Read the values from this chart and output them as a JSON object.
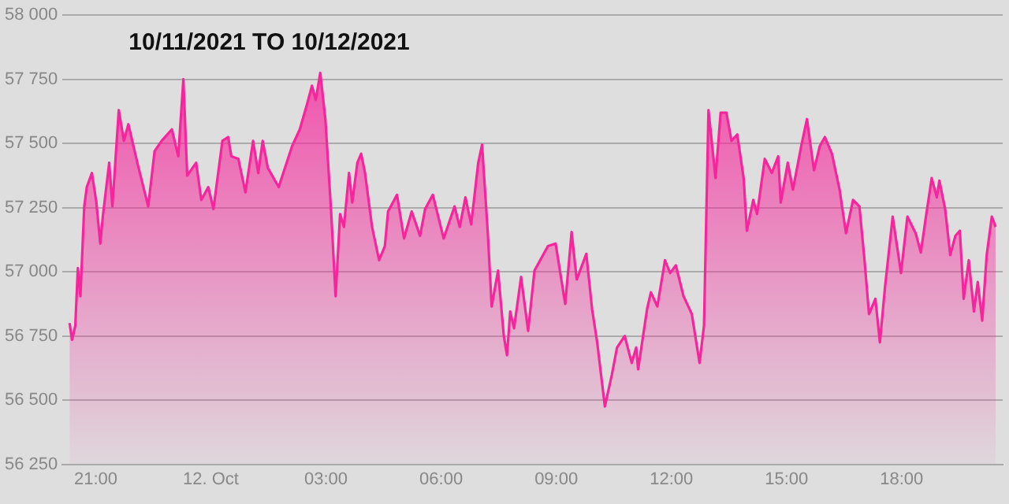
{
  "chart_data": {
    "type": "area",
    "title": "10/11/2021 TO 10/12/2021",
    "x": [
      "2021-10-11T20:19",
      "2021-10-11T20:23",
      "2021-10-11T20:28",
      "2021-10-11T20:32",
      "2021-10-11T20:36",
      "2021-10-11T20:42",
      "2021-10-11T20:46",
      "2021-10-11T20:54",
      "2021-10-11T21:01",
      "2021-10-11T21:07",
      "2021-10-11T21:11",
      "2021-10-11T21:21",
      "2021-10-11T21:26",
      "2021-10-11T21:36",
      "2021-10-11T21:44",
      "2021-10-11T21:51",
      "2021-10-11T22:05",
      "2021-10-11T22:22",
      "2021-10-11T22:32",
      "2021-10-11T22:43",
      "2021-10-11T22:59",
      "2021-10-11T23:09",
      "2021-10-11T23:17",
      "2021-10-11T23:23",
      "2021-10-11T23:37",
      "2021-10-11T23:45",
      "2021-10-11T23:56",
      "2021-10-12T00:04",
      "2021-10-12T00:18",
      "2021-10-12T00:27",
      "2021-10-12T00:32",
      "2021-10-12T00:43",
      "2021-10-12T00:54",
      "2021-10-12T01:06",
      "2021-10-12T01:14",
      "2021-10-12T01:21",
      "2021-10-12T01:29",
      "2021-10-12T01:46",
      "2021-10-12T02:07",
      "2021-10-12T02:19",
      "2021-10-12T02:30",
      "2021-10-12T02:38",
      "2021-10-12T02:44",
      "2021-10-12T02:51",
      "2021-10-12T02:59",
      "2021-10-12T03:08",
      "2021-10-12T03:15",
      "2021-10-12T03:22",
      "2021-10-12T03:28",
      "2021-10-12T03:36",
      "2021-10-12T03:41",
      "2021-10-12T03:49",
      "2021-10-12T03:55",
      "2021-10-12T04:01",
      "2021-10-12T04:12",
      "2021-10-12T04:23",
      "2021-10-12T04:32",
      "2021-10-12T04:37",
      "2021-10-12T04:51",
      "2021-10-12T05:02",
      "2021-10-12T05:14",
      "2021-10-12T05:27",
      "2021-10-12T05:35",
      "2021-10-12T05:47",
      "2021-10-12T06:04",
      "2021-10-12T06:21",
      "2021-10-12T06:29",
      "2021-10-12T06:38",
      "2021-10-12T06:47",
      "2021-10-12T06:58",
      "2021-10-12T07:04",
      "2021-10-12T07:13",
      "2021-10-12T07:19",
      "2021-10-12T07:29",
      "2021-10-12T07:38",
      "2021-10-12T07:43",
      "2021-10-12T07:48",
      "2021-10-12T07:54",
      "2021-10-12T08:05",
      "2021-10-12T08:16",
      "2021-10-12T08:26",
      "2021-10-12T08:47",
      "2021-10-12T08:59",
      "2021-10-12T09:14",
      "2021-10-12T09:24",
      "2021-10-12T09:32",
      "2021-10-12T09:47",
      "2021-10-12T09:56",
      "2021-10-12T10:04",
      "2021-10-12T10:16",
      "2021-10-12T10:27",
      "2021-10-12T10:35",
      "2021-10-12T10:47",
      "2021-10-12T10:58",
      "2021-10-12T11:05",
      "2021-10-12T11:08",
      "2021-10-12T11:22",
      "2021-10-12T11:28",
      "2021-10-12T11:38",
      "2021-10-12T11:50",
      "2021-10-12T11:58",
      "2021-10-12T12:07",
      "2021-10-12T12:19",
      "2021-10-12T12:32",
      "2021-10-12T12:44",
      "2021-10-12T12:51",
      "2021-10-12T12:58",
      "2021-10-12T13:02",
      "2021-10-12T13:09",
      "2021-10-12T13:17",
      "2021-10-12T13:26",
      "2021-10-12T13:34",
      "2021-10-12T13:43",
      "2021-10-12T13:53",
      "2021-10-12T13:58",
      "2021-10-12T14:08",
      "2021-10-12T14:14",
      "2021-10-12T14:26",
      "2021-10-12T14:37",
      "2021-10-12T14:47",
      "2021-10-12T14:51",
      "2021-10-12T15:02",
      "2021-10-12T15:10",
      "2021-10-12T15:23",
      "2021-10-12T15:32",
      "2021-10-12T15:43",
      "2021-10-12T15:52",
      "2021-10-12T16:00",
      "2021-10-12T16:11",
      "2021-10-12T16:23",
      "2021-10-12T16:33",
      "2021-10-12T16:44",
      "2021-10-12T16:54",
      "2021-10-12T17:02",
      "2021-10-12T17:09",
      "2021-10-12T17:19",
      "2021-10-12T17:26",
      "2021-10-12T17:34",
      "2021-10-12T17:46",
      "2021-10-12T17:59",
      "2021-10-12T18:09",
      "2021-10-12T18:22",
      "2021-10-12T18:30",
      "2021-10-12T18:38",
      "2021-10-12T18:47",
      "2021-10-12T18:55",
      "2021-10-12T18:59",
      "2021-10-12T19:08",
      "2021-10-12T19:16",
      "2021-10-12T19:24",
      "2021-10-12T19:31",
      "2021-10-12T19:37",
      "2021-10-12T19:45",
      "2021-10-12T19:53",
      "2021-10-12T19:59",
      "2021-10-12T20:06",
      "2021-10-12T20:13",
      "2021-10-12T20:21",
      "2021-10-12T20:27"
    ],
    "series": [
      {
        "color": "#f7259c",
        "values": [
          56800,
          56735,
          56790,
          57015,
          56905,
          57255,
          57330,
          57385,
          57270,
          57110,
          57215,
          57425,
          57255,
          57630,
          57510,
          57575,
          57425,
          57255,
          57470,
          57510,
          57555,
          57450,
          57750,
          57375,
          57425,
          57280,
          57330,
          57245,
          57510,
          57525,
          57450,
          57440,
          57310,
          57510,
          57385,
          57510,
          57405,
          57330,
          57490,
          57555,
          57650,
          57725,
          57670,
          57775,
          57595,
          57235,
          56905,
          57225,
          57175,
          57385,
          57270,
          57425,
          57460,
          57385,
          57175,
          57045,
          57100,
          57235,
          57300,
          57130,
          57235,
          57140,
          57245,
          57300,
          57130,
          57255,
          57175,
          57290,
          57185,
          57425,
          57495,
          57150,
          56865,
          57005,
          56750,
          56675,
          56845,
          56780,
          56980,
          56770,
          57005,
          57100,
          57110,
          56875,
          57155,
          56970,
          57070,
          56855,
          56725,
          56475,
          56600,
          56705,
          56750,
          56645,
          56705,
          56620,
          56855,
          56920,
          56865,
          57045,
          56995,
          57025,
          56905,
          56835,
          56645,
          56790,
          57630,
          57535,
          57365,
          57620,
          57620,
          57510,
          57535,
          57365,
          57160,
          57280,
          57225,
          57440,
          57385,
          57450,
          57270,
          57425,
          57320,
          57490,
          57595,
          57395,
          57490,
          57525,
          57460,
          57320,
          57150,
          57280,
          57255,
          57045,
          56835,
          56895,
          56725,
          56940,
          57215,
          56995,
          57215,
          57150,
          57075,
          57215,
          57365,
          57290,
          57355,
          57245,
          57065,
          57140,
          57160,
          56895,
          57045,
          56845,
          56960,
          56810,
          57065,
          57215,
          57175
        ]
      }
    ],
    "xlim": [
      "2021-10-11T20:08",
      "2021-10-12T20:38"
    ],
    "xticks": [
      {
        "value": "2021-10-11T21:00",
        "label": "21:00"
      },
      {
        "value": "2021-10-12T00:00",
        "label": "12. Oct"
      },
      {
        "value": "2021-10-12T03:00",
        "label": "03:00"
      },
      {
        "value": "2021-10-12T06:00",
        "label": "06:00"
      },
      {
        "value": "2021-10-12T09:00",
        "label": "09:00"
      },
      {
        "value": "2021-10-12T12:00",
        "label": "12:00"
      },
      {
        "value": "2021-10-12T15:00",
        "label": "15:00"
      },
      {
        "value": "2021-10-12T18:00",
        "label": "18:00"
      }
    ],
    "ylim": [
      56250,
      58000
    ],
    "yticks": [
      {
        "value": 56250,
        "label": "56 250"
      },
      {
        "value": 56500,
        "label": "56 500"
      },
      {
        "value": 56750,
        "label": "56 750"
      },
      {
        "value": 57000,
        "label": "57 000"
      },
      {
        "value": 57250,
        "label": "57 250"
      },
      {
        "value": 57500,
        "label": "57 500"
      },
      {
        "value": 57750,
        "label": "57 750"
      },
      {
        "value": 58000,
        "label": "58 000"
      }
    ],
    "grid": "y",
    "legend": false
  }
}
